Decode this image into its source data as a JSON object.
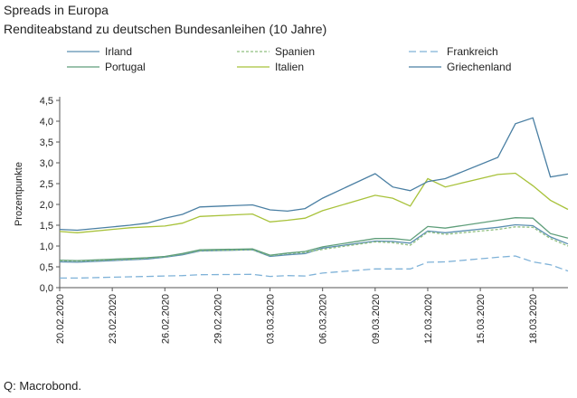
{
  "chart_data": {
    "type": "line",
    "title": "Spreads in Europa",
    "subtitle": "Renditeabstand zu deutschen Bundesanleihen (10 Jahre)",
    "source": "Q: Macrobond.",
    "ylabel": "Prozentpunkte",
    "xlabel": "",
    "ylim": [
      0,
      4.5
    ],
    "yticks": [
      "0,0",
      "0,5",
      "1,0",
      "1,5",
      "2,0",
      "2,5",
      "3,0",
      "3,5",
      "4,0",
      "4,5"
    ],
    "ytick_values": [
      0,
      0.5,
      1.0,
      1.5,
      2.0,
      2.5,
      3.0,
      3.5,
      4.0,
      4.5
    ],
    "xticks": [
      "20.02.2020",
      "23.02.2020",
      "26.02.2020",
      "29.02.2020",
      "03.03.2020",
      "06.03.2020",
      "09.03.2020",
      "12.03.2020",
      "15.03.2020",
      "18.03.2020"
    ],
    "x": [
      "2020-02-20",
      "2020-02-21",
      "2020-02-24",
      "2020-02-25",
      "2020-02-26",
      "2020-02-27",
      "2020-02-28",
      "2020-03-02",
      "2020-03-03",
      "2020-03-04",
      "2020-03-05",
      "2020-03-06",
      "2020-03-09",
      "2020-03-10",
      "2020-03-11",
      "2020-03-12",
      "2020-03-13",
      "2020-03-16",
      "2020-03-17",
      "2020-03-18",
      "2020-03-19",
      "2020-03-20"
    ],
    "legend_placement": "top",
    "grid": false,
    "series": [
      {
        "name": "Irland",
        "color": "#5b8fb0",
        "dash": "",
        "values": [
          0.62,
          0.61,
          0.67,
          0.69,
          0.73,
          0.79,
          0.88,
          0.91,
          0.75,
          0.79,
          0.82,
          0.95,
          1.12,
          1.11,
          1.07,
          1.36,
          1.32,
          1.45,
          1.51,
          1.49,
          1.22,
          1.05
        ]
      },
      {
        "name": "Spanien",
        "color": "#8fbf7f",
        "dash": "3,2",
        "values": [
          0.65,
          0.64,
          0.68,
          0.71,
          0.74,
          0.81,
          0.89,
          0.91,
          0.77,
          0.82,
          0.85,
          0.92,
          1.1,
          1.08,
          1.02,
          1.34,
          1.28,
          1.4,
          1.46,
          1.45,
          1.18,
          1.0
        ]
      },
      {
        "name": "Frankreich",
        "color": "#7fb2d8",
        "dash": "8,4",
        "values": [
          0.23,
          0.23,
          0.26,
          0.27,
          0.28,
          0.29,
          0.31,
          0.32,
          0.27,
          0.29,
          0.28,
          0.35,
          0.45,
          0.45,
          0.45,
          0.61,
          0.62,
          0.73,
          0.76,
          0.62,
          0.55,
          0.4
        ]
      },
      {
        "name": "Portugal",
        "color": "#5f9e7a",
        "dash": "",
        "values": [
          0.66,
          0.65,
          0.7,
          0.72,
          0.75,
          0.82,
          0.91,
          0.93,
          0.78,
          0.83,
          0.87,
          0.98,
          1.18,
          1.18,
          1.14,
          1.47,
          1.43,
          1.62,
          1.68,
          1.67,
          1.3,
          1.19
        ]
      },
      {
        "name": "Italien",
        "color": "#a8c23a",
        "dash": "",
        "values": [
          1.35,
          1.32,
          1.44,
          1.46,
          1.48,
          1.55,
          1.71,
          1.77,
          1.58,
          1.62,
          1.67,
          1.85,
          2.22,
          2.15,
          1.96,
          2.62,
          2.42,
          2.72,
          2.75,
          2.45,
          2.1,
          1.88
        ]
      },
      {
        "name": "Griechenland",
        "color": "#4a7fa3",
        "dash": "",
        "values": [
          1.4,
          1.38,
          1.5,
          1.55,
          1.67,
          1.76,
          1.94,
          1.99,
          1.87,
          1.84,
          1.9,
          2.15,
          2.74,
          2.42,
          2.33,
          2.55,
          2.62,
          3.13,
          3.94,
          4.08,
          2.66,
          2.73
        ]
      }
    ]
  }
}
